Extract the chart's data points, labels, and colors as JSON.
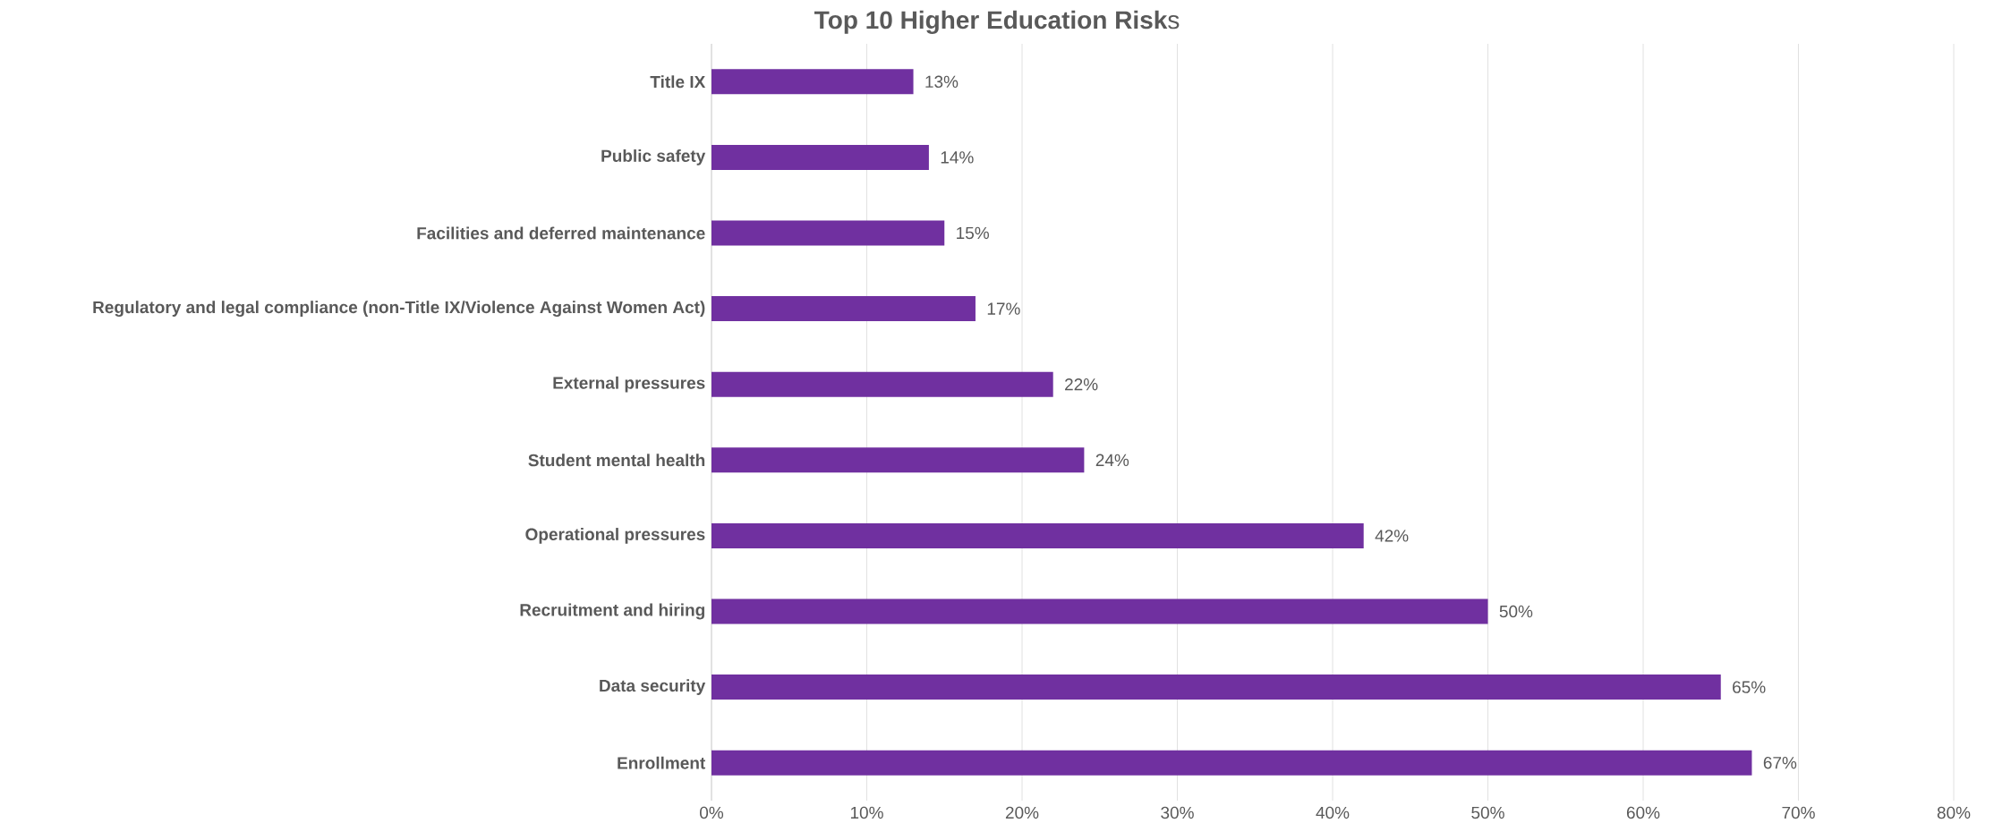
{
  "chart_data": {
    "type": "bar",
    "orientation": "horizontal",
    "title": "**Top 10 Higher Education Risk**s",
    "categories": [
      "Title IX",
      "Public safety",
      "Facilities and deferred maintenance",
      "Regulatory and legal compliance (non-Title IX/Violence Against Women Act)",
      "External pressures",
      "Student mental health",
      "Operational pressures",
      "Recruitment and hiring",
      "Data security",
      "Enrollment"
    ],
    "values": [
      13,
      14,
      15,
      17,
      22,
      24,
      42,
      50,
      65,
      67
    ],
    "value_labels": [
      "13%",
      "14%",
      "15%",
      "17%",
      "22%",
      "24%",
      "42%",
      "50%",
      "65%",
      "67%"
    ],
    "color": "#7030a0",
    "xlim": [
      0,
      80
    ],
    "xticks": [
      {
        "value": 0,
        "label": "0%"
      },
      {
        "value": 10,
        "label": "10%"
      },
      {
        "value": 20,
        "label": "20%"
      },
      {
        "value": 30,
        "label": "30%"
      },
      {
        "value": 40,
        "label": "40%"
      },
      {
        "value": 50,
        "label": "50%"
      },
      {
        "value": 60,
        "label": "60%"
      },
      {
        "value": 70,
        "label": "70%"
      },
      {
        "value": 80,
        "label": "80%"
      }
    ],
    "grid": "x"
  }
}
